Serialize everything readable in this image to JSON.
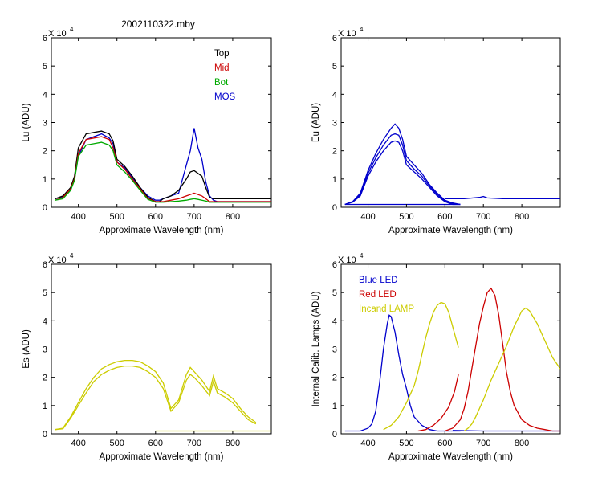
{
  "figure": {
    "title": "2002110322.mby"
  },
  "chart_data": [
    {
      "type": "line",
      "panel": "top-left",
      "ylabel": "Lu (ADU)",
      "xlabel": "Approximate Wavelength (nm)",
      "multiplier": "X 10",
      "exponent": "4",
      "xlim": [
        330,
        900
      ],
      "ylim": [
        0,
        6
      ],
      "xticks": [
        400,
        500,
        600,
        700,
        800
      ],
      "yticks": [
        0,
        1,
        2,
        3,
        4,
        5,
        6
      ],
      "legend": {
        "placement": "top-right",
        "entries": [
          {
            "label": "Top",
            "color": "#000000"
          },
          {
            "label": "Mid",
            "color": "#cc0000"
          },
          {
            "label": "Bot",
            "color": "#00aa00"
          },
          {
            "label": "MOS",
            "color": "#0000cc"
          }
        ]
      },
      "series": [
        {
          "color": "#0000cc",
          "x": [
            340,
            360,
            380,
            390,
            400,
            420,
            440,
            460,
            480,
            490,
            500,
            520,
            540,
            560,
            580,
            600,
            610,
            620,
            640,
            660,
            680,
            690,
            700,
            710,
            720,
            730,
            740,
            750,
            760,
            800,
            850,
            900
          ],
          "y": [
            0.3,
            0.38,
            0.6,
            1.0,
            1.8,
            2.4,
            2.5,
            2.6,
            2.45,
            2.25,
            1.6,
            1.4,
            1.05,
            0.7,
            0.4,
            0.25,
            0.25,
            0.3,
            0.4,
            0.5,
            1.5,
            2.0,
            2.8,
            2.1,
            1.7,
            0.9,
            0.4,
            0.25,
            0.2,
            0.2,
            0.2,
            0.2
          ]
        },
        {
          "color": "#000000",
          "x": [
            340,
            360,
            380,
            390,
            400,
            420,
            440,
            460,
            480,
            490,
            500,
            520,
            540,
            560,
            580,
            600,
            610,
            620,
            640,
            660,
            680,
            690,
            700,
            710,
            720,
            730,
            740,
            750,
            760,
            800,
            850,
            900
          ],
          "y": [
            0.3,
            0.4,
            0.7,
            1.1,
            2.1,
            2.6,
            2.65,
            2.7,
            2.6,
            2.35,
            1.7,
            1.45,
            1.1,
            0.7,
            0.35,
            0.2,
            0.2,
            0.3,
            0.4,
            0.6,
            1.0,
            1.25,
            1.3,
            1.2,
            1.1,
            0.7,
            0.35,
            0.3,
            0.3,
            0.3,
            0.3,
            0.3
          ]
        },
        {
          "color": "#cc0000",
          "x": [
            340,
            360,
            380,
            390,
            400,
            420,
            440,
            460,
            480,
            490,
            500,
            520,
            540,
            560,
            580,
            600,
            610,
            620,
            640,
            660,
            680,
            690,
            700,
            710,
            720,
            730,
            740,
            750,
            760,
            800,
            850,
            900
          ],
          "y": [
            0.25,
            0.35,
            0.65,
            1.0,
            1.9,
            2.4,
            2.45,
            2.5,
            2.4,
            2.1,
            1.6,
            1.35,
            1.0,
            0.65,
            0.3,
            0.2,
            0.2,
            0.2,
            0.25,
            0.3,
            0.4,
            0.45,
            0.5,
            0.45,
            0.4,
            0.3,
            0.2,
            0.2,
            0.2,
            0.2,
            0.2,
            0.2
          ]
        },
        {
          "color": "#00aa00",
          "x": [
            340,
            360,
            380,
            390,
            400,
            420,
            440,
            460,
            480,
            490,
            500,
            520,
            540,
            560,
            580,
            600,
            610,
            620,
            640,
            660,
            680,
            690,
            700,
            710,
            720,
            730,
            740,
            750,
            760,
            800,
            850,
            900
          ],
          "y": [
            0.25,
            0.3,
            0.6,
            0.95,
            1.8,
            2.2,
            2.25,
            2.3,
            2.2,
            2.0,
            1.5,
            1.25,
            0.95,
            0.6,
            0.28,
            0.18,
            0.18,
            0.18,
            0.2,
            0.22,
            0.25,
            0.28,
            0.3,
            0.28,
            0.25,
            0.22,
            0.18,
            0.18,
            0.18,
            0.18,
            0.18,
            0.18
          ]
        }
      ]
    },
    {
      "type": "line",
      "panel": "top-right",
      "ylabel": "Eu (ADU)",
      "xlabel": "Approximate Wavelength (nm)",
      "multiplier": "X 10",
      "exponent": "4",
      "xlim": [
        330,
        900
      ],
      "ylim": [
        0,
        6
      ],
      "xticks": [
        400,
        500,
        600,
        700,
        800
      ],
      "yticks": [
        0,
        1,
        2,
        3,
        4,
        5,
        6
      ],
      "series": [
        {
          "color": "#0000cc",
          "x": [
            340,
            360,
            380,
            400,
            420,
            440,
            460,
            470,
            480,
            490,
            500,
            520,
            540,
            560,
            580,
            600,
            620,
            640
          ],
          "y": [
            0.1,
            0.2,
            0.5,
            1.3,
            1.9,
            2.4,
            2.8,
            2.95,
            2.8,
            2.4,
            1.8,
            1.5,
            1.2,
            0.8,
            0.5,
            0.25,
            0.15,
            0.1
          ]
        },
        {
          "color": "#0000cc",
          "x": [
            340,
            360,
            380,
            400,
            420,
            440,
            460,
            470,
            480,
            490,
            500,
            520,
            540,
            560,
            580,
            600,
            620,
            640
          ],
          "y": [
            0.1,
            0.2,
            0.45,
            1.2,
            1.75,
            2.2,
            2.55,
            2.6,
            2.55,
            2.2,
            1.65,
            1.35,
            1.1,
            0.75,
            0.45,
            0.22,
            0.12,
            0.1
          ]
        },
        {
          "color": "#0000cc",
          "x": [
            340,
            360,
            380,
            400,
            420,
            440,
            460,
            470,
            480,
            490,
            500,
            520,
            540,
            560,
            580,
            600,
            620,
            640
          ],
          "y": [
            0.1,
            0.18,
            0.4,
            1.1,
            1.6,
            2.0,
            2.3,
            2.35,
            2.3,
            2.0,
            1.5,
            1.25,
            1.0,
            0.7,
            0.4,
            0.2,
            0.1,
            0.1
          ]
        },
        {
          "color": "#0000cc",
          "x": [
            600,
            650,
            690,
            700,
            710,
            750,
            800,
            850,
            900
          ],
          "y": [
            0.3,
            0.3,
            0.35,
            0.38,
            0.33,
            0.3,
            0.3,
            0.3,
            0.3
          ]
        },
        {
          "color": "#0000cc",
          "x": [
            340,
            400,
            500,
            600,
            640
          ],
          "y": [
            0.1,
            0.1,
            0.1,
            0.1,
            0.1
          ]
        }
      ]
    },
    {
      "type": "line",
      "panel": "bottom-left",
      "ylabel": "Es (ADU)",
      "xlabel": "Approximate Wavelength (nm)",
      "multiplier": "X 10",
      "exponent": "4",
      "xlim": [
        330,
        900
      ],
      "ylim": [
        0,
        6
      ],
      "xticks": [
        400,
        500,
        600,
        700,
        800
      ],
      "yticks": [
        0,
        1,
        2,
        3,
        4,
        5,
        6
      ],
      "series": [
        {
          "color": "#cccc00",
          "x": [
            340,
            360,
            380,
            400,
            420,
            440,
            460,
            480,
            500,
            520,
            540,
            560,
            580,
            600,
            620,
            640,
            660,
            680,
            690,
            700,
            720,
            740,
            750,
            760,
            780,
            800,
            820,
            840,
            860
          ],
          "y": [
            0.15,
            0.2,
            0.6,
            1.1,
            1.6,
            2.0,
            2.3,
            2.45,
            2.55,
            2.6,
            2.6,
            2.55,
            2.4,
            2.2,
            1.8,
            0.9,
            1.2,
            2.1,
            2.35,
            2.2,
            1.9,
            1.5,
            2.05,
            1.6,
            1.45,
            1.25,
            0.9,
            0.6,
            0.4
          ]
        },
        {
          "color": "#cccc00",
          "x": [
            340,
            360,
            380,
            400,
            420,
            440,
            460,
            480,
            500,
            520,
            540,
            560,
            580,
            600,
            620,
            640,
            660,
            680,
            690,
            700,
            720,
            740,
            750,
            760,
            780,
            800,
            820,
            840,
            860
          ],
          "y": [
            0.15,
            0.18,
            0.55,
            1.0,
            1.45,
            1.85,
            2.1,
            2.25,
            2.35,
            2.4,
            2.4,
            2.35,
            2.2,
            2.0,
            1.6,
            0.8,
            1.1,
            1.9,
            2.1,
            2.0,
            1.7,
            1.35,
            1.85,
            1.45,
            1.3,
            1.1,
            0.8,
            0.5,
            0.35
          ]
        },
        {
          "color": "#cccc00",
          "x": [
            600,
            650,
            700,
            750,
            800,
            850,
            900
          ],
          "y": [
            0.1,
            0.1,
            0.1,
            0.1,
            0.1,
            0.1,
            0.1
          ]
        }
      ]
    },
    {
      "type": "line",
      "panel": "bottom-right",
      "ylabel": "Internal Calib. Lamps (ADU)",
      "xlabel": "Approximate Wavelength (nm)",
      "multiplier": "X 10",
      "exponent": "4",
      "xlim": [
        330,
        900
      ],
      "ylim": [
        0,
        6
      ],
      "xticks": [
        400,
        500,
        600,
        700,
        800
      ],
      "yticks": [
        0,
        1,
        2,
        3,
        4,
        5,
        6
      ],
      "legend": {
        "placement": "top-left",
        "entries": [
          {
            "label": "Blue LED",
            "color": "#0000cc"
          },
          {
            "label": "Red LED",
            "color": "#cc0000"
          },
          {
            "label": "Incand LAMP",
            "color": "#cccc00"
          }
        ]
      },
      "series": [
        {
          "color": "#0000cc",
          "x": [
            340,
            380,
            400,
            410,
            420,
            430,
            440,
            450,
            455,
            460,
            470,
            480,
            490,
            500,
            510,
            520,
            540,
            560,
            580,
            600,
            640
          ],
          "y": [
            0.1,
            0.1,
            0.2,
            0.35,
            0.8,
            1.8,
            3.0,
            3.9,
            4.2,
            4.15,
            3.6,
            2.8,
            2.1,
            1.6,
            1.0,
            0.6,
            0.3,
            0.15,
            0.1,
            0.1,
            0.1
          ]
        },
        {
          "color": "#0000cc",
          "x": [
            620,
            700,
            800,
            900
          ],
          "y": [
            0.12,
            0.1,
            0.1,
            0.1
          ]
        },
        {
          "color": "#cc0000",
          "x": [
            600,
            620,
            640,
            650,
            660,
            670,
            680,
            690,
            700,
            710,
            720,
            730,
            740,
            750,
            760,
            770,
            780,
            800,
            820,
            840,
            860,
            880,
            900
          ],
          "y": [
            0.1,
            0.2,
            0.5,
            0.9,
            1.5,
            2.3,
            3.1,
            3.9,
            4.5,
            5.0,
            5.15,
            4.9,
            4.2,
            3.2,
            2.2,
            1.5,
            1.0,
            0.5,
            0.3,
            0.2,
            0.15,
            0.1,
            0.1
          ]
        },
        {
          "color": "#cc0000",
          "x": [
            530,
            550,
            570,
            590,
            610,
            625,
            635
          ],
          "y": [
            0.1,
            0.15,
            0.3,
            0.55,
            0.95,
            1.5,
            2.1
          ]
        },
        {
          "color": "#cccc00",
          "x": [
            440,
            460,
            480,
            500,
            510,
            520,
            530,
            540,
            550,
            560,
            570,
            580,
            590,
            600,
            610,
            620,
            630,
            635
          ],
          "y": [
            0.15,
            0.3,
            0.6,
            1.1,
            1.4,
            1.7,
            2.2,
            2.8,
            3.4,
            3.9,
            4.3,
            4.55,
            4.65,
            4.6,
            4.3,
            3.8,
            3.3,
            3.05
          ]
        },
        {
          "color": "#cccc00",
          "x": [
            650,
            660,
            670,
            680,
            690,
            700,
            720,
            740,
            760,
            780,
            800,
            810,
            820,
            840,
            860,
            880,
            900
          ],
          "y": [
            0.1,
            0.2,
            0.35,
            0.6,
            0.9,
            1.2,
            1.9,
            2.5,
            3.1,
            3.8,
            4.35,
            4.45,
            4.35,
            3.9,
            3.3,
            2.7,
            2.3
          ]
        }
      ]
    }
  ]
}
